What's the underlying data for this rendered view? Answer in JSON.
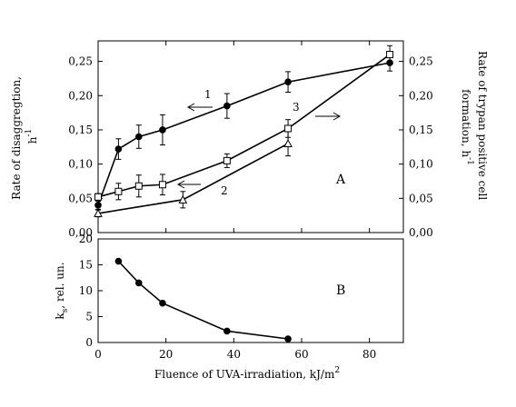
{
  "chart_data": [
    {
      "panel": "A",
      "type": "line",
      "x_axis": {
        "range": [
          0,
          90
        ],
        "ticks": [
          0,
          20,
          40,
          60,
          80
        ]
      },
      "y_left": {
        "label_line1": "Rate of disaggregtion,",
        "label_line2": "h",
        "label_sup": "-1",
        "range": [
          0,
          0.28
        ],
        "ticks": [
          0.0,
          0.05,
          0.1,
          0.15,
          0.2,
          0.25
        ],
        "tick_labels": [
          "0,00",
          "0,05",
          "0,10",
          "0,15",
          "0,20",
          "0,25"
        ]
      },
      "y_right": {
        "label_line1": "Rate of trypan positive cell",
        "label_line2": "formation, h",
        "label_sup": "-1",
        "range": [
          0,
          0.28
        ],
        "ticks": [
          0.0,
          0.05,
          0.1,
          0.15,
          0.2,
          0.25
        ],
        "tick_labels": [
          "0,00",
          "0,05",
          "0,10",
          "0,15",
          "0,20",
          "0,25"
        ]
      },
      "series": [
        {
          "curve_label": "1",
          "marker": "filled-circle",
          "axis": "left",
          "x": [
            0,
            6,
            12,
            19,
            38,
            56,
            86
          ],
          "y": [
            0.04,
            0.122,
            0.14,
            0.15,
            0.185,
            0.22,
            0.248
          ],
          "err": [
            0.006,
            0.015,
            0.017,
            0.022,
            0.018,
            0.015,
            0.012
          ]
        },
        {
          "curve_label": "2",
          "marker": "open-triangle",
          "axis": "left",
          "x": [
            0,
            25,
            56
          ],
          "y": [
            0.028,
            0.048,
            0.13
          ],
          "err": [
            0.005,
            0.012,
            0.018
          ]
        },
        {
          "curve_label": "3",
          "marker": "open-square",
          "axis": "right",
          "x": [
            0,
            6,
            12,
            19,
            38,
            56,
            86
          ],
          "y": [
            0.052,
            0.06,
            0.068,
            0.07,
            0.105,
            0.152,
            0.26
          ],
          "err": [
            0.005,
            0.012,
            0.016,
            0.015,
            0.01,
            0.013,
            0.013
          ]
        }
      ],
      "panel_label": "A"
    },
    {
      "panel": "B",
      "type": "line",
      "x_axis": {
        "range": [
          0,
          90
        ],
        "ticks": [
          0,
          20,
          40,
          60,
          80
        ],
        "label": "Fluence of UVA-irradiation, kJ/m",
        "label_sup": "2"
      },
      "y_left": {
        "label_main": "k",
        "label_sub": "s",
        "label_rest": ", rel. un.",
        "range": [
          0,
          20
        ],
        "ticks": [
          0,
          5,
          10,
          15,
          20
        ],
        "tick_labels": [
          "0",
          "5",
          "10",
          "15",
          "20"
        ]
      },
      "series": [
        {
          "marker": "filled-circle",
          "x": [
            6,
            12,
            19,
            38,
            56
          ],
          "y": [
            15.7,
            11.5,
            7.6,
            2.2,
            0.7
          ]
        }
      ],
      "panel_label": "B"
    }
  ],
  "colors": {
    "ink": "#000000",
    "background": "#ffffff"
  }
}
